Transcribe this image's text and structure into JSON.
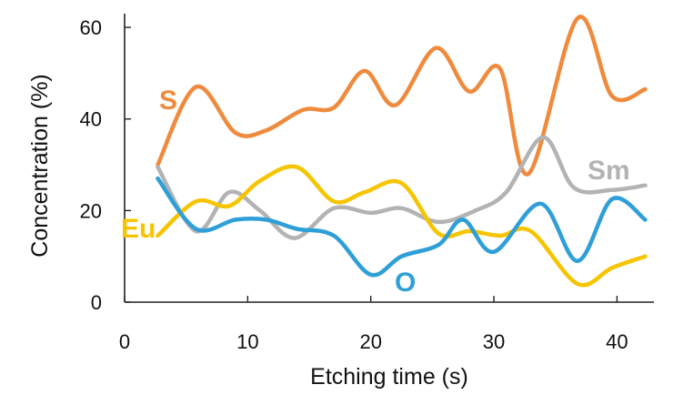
{
  "chart_data": {
    "type": "line",
    "title": "",
    "xlabel": "Etching time (s)",
    "ylabel": "Concentration (%)",
    "xlim": [
      0,
      43
    ],
    "ylim": [
      0,
      63
    ],
    "xticks": [
      0,
      10,
      20,
      30,
      40
    ],
    "yticks": [
      0,
      20,
      40,
      60
    ],
    "grid": false,
    "legend": "inline labels",
    "series": [
      {
        "name": "S",
        "color": "#F08A3C",
        "points": [
          [
            2.7,
            30
          ],
          [
            5.8,
            47
          ],
          [
            9,
            37
          ],
          [
            11.5,
            37.5
          ],
          [
            14.5,
            42
          ],
          [
            17,
            42.5
          ],
          [
            19.5,
            50.5
          ],
          [
            22,
            43
          ],
          [
            25.3,
            55.5
          ],
          [
            28,
            46
          ],
          [
            30.5,
            51
          ],
          [
            32.8,
            28
          ],
          [
            36.8,
            62
          ],
          [
            39.6,
            45
          ],
          [
            42.3,
            46.5
          ]
        ]
      },
      {
        "name": "Sm",
        "color": "#B3B3B3",
        "points": [
          [
            2.7,
            29.5
          ],
          [
            5.8,
            15.5
          ],
          [
            8.5,
            24
          ],
          [
            11,
            20
          ],
          [
            13.8,
            14
          ],
          [
            17,
            20.5
          ],
          [
            20,
            19.5
          ],
          [
            22.5,
            20.5
          ],
          [
            25.5,
            17.5
          ],
          [
            28.5,
            20
          ],
          [
            31,
            24
          ],
          [
            34,
            36
          ],
          [
            36.5,
            25
          ],
          [
            39.6,
            24.5
          ],
          [
            42.3,
            25.5
          ]
        ]
      },
      {
        "name": "Eu",
        "color": "#F7C400",
        "points": [
          [
            2.7,
            14.5
          ],
          [
            5.8,
            22
          ],
          [
            8.5,
            21
          ],
          [
            11,
            26.5
          ],
          [
            14,
            29.5
          ],
          [
            17,
            22
          ],
          [
            19.5,
            24
          ],
          [
            22.5,
            26
          ],
          [
            25.5,
            15
          ],
          [
            28,
            15.5
          ],
          [
            30.5,
            14.5
          ],
          [
            33,
            15.5
          ],
          [
            36.8,
            4
          ],
          [
            39.6,
            7.5
          ],
          [
            42.3,
            10
          ]
        ]
      },
      {
        "name": "O",
        "color": "#2F9FD8",
        "points": [
          [
            2.7,
            27
          ],
          [
            5.8,
            16
          ],
          [
            9,
            18
          ],
          [
            11.5,
            18
          ],
          [
            14,
            16
          ],
          [
            17,
            14.5
          ],
          [
            20,
            6
          ],
          [
            22.5,
            10
          ],
          [
            25.5,
            12.5
          ],
          [
            27.5,
            18
          ],
          [
            30,
            11
          ],
          [
            33.8,
            21.5
          ],
          [
            36.8,
            9
          ],
          [
            39.6,
            22.5
          ],
          [
            42.3,
            18
          ]
        ]
      }
    ]
  }
}
